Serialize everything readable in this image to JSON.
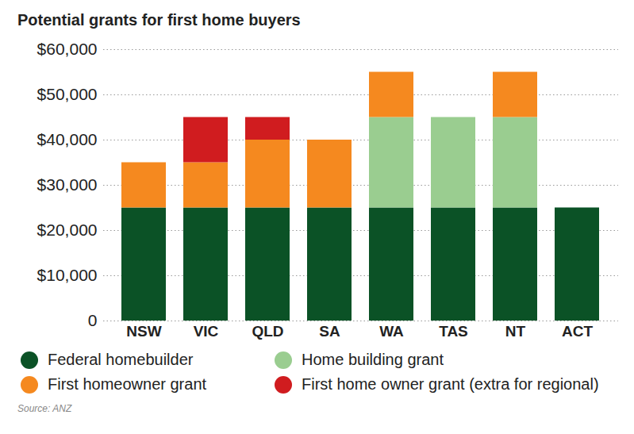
{
  "chart_data": {
    "type": "bar",
    "title": "Potential grants for first home buyers",
    "source": "Source: ANZ",
    "stacked": true,
    "grid": true,
    "legend": "bottom",
    "categories": [
      "NSW",
      "VIC",
      "QLD",
      "SA",
      "WA",
      "TAS",
      "NT",
      "ACT"
    ],
    "series": [
      {
        "name": "Federal homebuilder",
        "color": "#0b5226",
        "values": [
          25000,
          25000,
          25000,
          25000,
          25000,
          25000,
          25000,
          25000
        ]
      },
      {
        "name": "Home building grant",
        "color": "#9acd90",
        "values": [
          0,
          0,
          0,
          0,
          20000,
          20000,
          20000,
          0
        ]
      },
      {
        "name": "First homeowner grant",
        "color": "#f5891f",
        "values": [
          10000,
          10000,
          15000,
          15000,
          10000,
          0,
          10000,
          0
        ]
      },
      {
        "name": "First home owner grant (extra for regional)",
        "color": "#d01c1f",
        "values": [
          0,
          10000,
          5000,
          0,
          0,
          0,
          0,
          0
        ]
      }
    ],
    "ylim": [
      0,
      60000
    ],
    "yticks": [
      0,
      {
        "value": 10000,
        "label": "$10,000"
      },
      {
        "value": 20000,
        "label": "$20,000"
      },
      {
        "value": 30000,
        "label": "$30,000"
      },
      {
        "value": 40000,
        "label": "$40,000"
      },
      {
        "value": 50000,
        "label": "$50,000"
      },
      {
        "value": 60000,
        "label": "$60,000"
      }
    ]
  }
}
